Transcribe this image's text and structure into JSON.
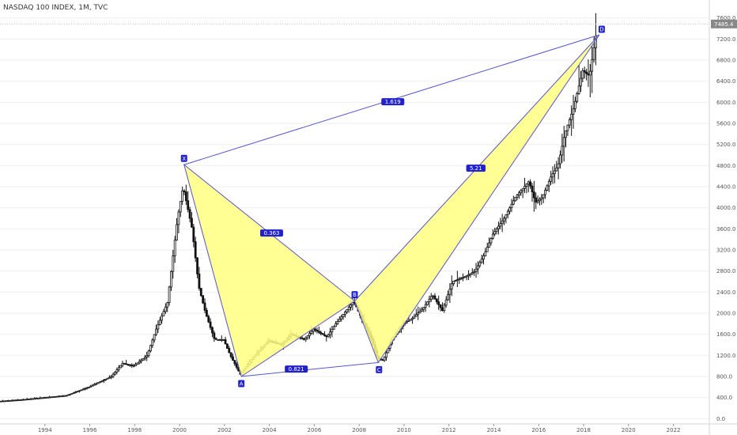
{
  "header": {
    "title": "NASDAQ 100 INDEX, 1M, TVC"
  },
  "colors": {
    "background": "#ffffff",
    "candle": "#111111",
    "pattern_fill": "#ffff80",
    "pattern_line": "#5555cc",
    "label_bg": "#2222cc",
    "grid": "#eeeeee",
    "price_label_bg": "#888888"
  },
  "chart_data": {
    "type": "candlestick",
    "title": "NASDAQ 100 INDEX, 1M, TVC",
    "x_range": [
      1992.0,
      2023.6
    ],
    "y_range": [
      -100,
      7700
    ],
    "x_ticks": [
      "1994",
      "1996",
      "1998",
      "2000",
      "2002",
      "2004",
      "2006",
      "2008",
      "2010",
      "2012",
      "2014",
      "2016",
      "2018",
      "2020",
      "2022"
    ],
    "y_ticks": [
      "0.0",
      "400.0",
      "800.0",
      "1200.0",
      "1600.0",
      "2000.0",
      "2400.0",
      "2800.0",
      "3200.0",
      "3600.0",
      "4000.0",
      "4400.0",
      "4800.0",
      "5200.0",
      "5600.0",
      "6000.0",
      "6400.0",
      "6800.0",
      "7200.0",
      "7600.0"
    ],
    "last_price": "7485.4",
    "price_anchors": [
      [
        1992.0,
        330
      ],
      [
        1993.0,
        360
      ],
      [
        1994.0,
        400
      ],
      [
        1995.0,
        440
      ],
      [
        1996.0,
        600
      ],
      [
        1997.0,
        800
      ],
      [
        1997.5,
        1050
      ],
      [
        1998.0,
        1000
      ],
      [
        1998.6,
        1200
      ],
      [
        1999.0,
        1700
      ],
      [
        1999.5,
        2200
      ],
      [
        1999.95,
        3800
      ],
      [
        2000.2,
        4400
      ],
      [
        2000.6,
        3600
      ],
      [
        2000.9,
        2500
      ],
      [
        2001.2,
        2000
      ],
      [
        2001.6,
        1500
      ],
      [
        2002.0,
        1500
      ],
      [
        2002.3,
        1200
      ],
      [
        2002.75,
        840
      ],
      [
        2003.2,
        1100
      ],
      [
        2003.6,
        1300
      ],
      [
        2004.0,
        1480
      ],
      [
        2004.6,
        1400
      ],
      [
        2005.0,
        1600
      ],
      [
        2005.6,
        1500
      ],
      [
        2006.0,
        1700
      ],
      [
        2006.6,
        1550
      ],
      [
        2007.0,
        1800
      ],
      [
        2007.8,
        2230
      ],
      [
        2008.2,
        1850
      ],
      [
        2008.6,
        1500
      ],
      [
        2008.85,
        1150
      ],
      [
        2009.1,
        1100
      ],
      [
        2009.5,
        1500
      ],
      [
        2010.0,
        1800
      ],
      [
        2010.4,
        1900
      ],
      [
        2010.9,
        2100
      ],
      [
        2011.3,
        2350
      ],
      [
        2011.75,
        2050
      ],
      [
        2012.2,
        2600
      ],
      [
        2012.8,
        2700
      ],
      [
        2013.2,
        2800
      ],
      [
        2013.6,
        3100
      ],
      [
        2014.0,
        3500
      ],
      [
        2014.5,
        3800
      ],
      [
        2015.0,
        4200
      ],
      [
        2015.6,
        4500
      ],
      [
        2015.9,
        4100
      ],
      [
        2016.2,
        4200
      ],
      [
        2016.6,
        4600
      ],
      [
        2016.9,
        4800
      ],
      [
        2017.2,
        5400
      ],
      [
        2017.6,
        5900
      ],
      [
        2018.0,
        6600
      ],
      [
        2018.3,
        6500
      ],
      [
        2018.6,
        7300
      ]
    ],
    "harmonic_pattern": {
      "points": [
        {
          "label": "X",
          "x": 2000.2,
          "y": 4816
        },
        {
          "label": "A",
          "x": 2002.75,
          "y": 800
        },
        {
          "label": "B",
          "x": 2007.8,
          "y": 2230
        },
        {
          "label": "C",
          "x": 2008.85,
          "y": 1065
        },
        {
          "label": "D",
          "x": 2018.7,
          "y": 7280
        }
      ],
      "ratios": [
        {
          "label": "0.363",
          "x": 2004.1,
          "y": 3520
        },
        {
          "label": "0.821",
          "x": 2005.2,
          "y": 940
        },
        {
          "label": "5.21",
          "x": 2013.2,
          "y": 4750
        },
        {
          "label": "1.619",
          "x": 2009.5,
          "y": 6010
        }
      ]
    }
  }
}
